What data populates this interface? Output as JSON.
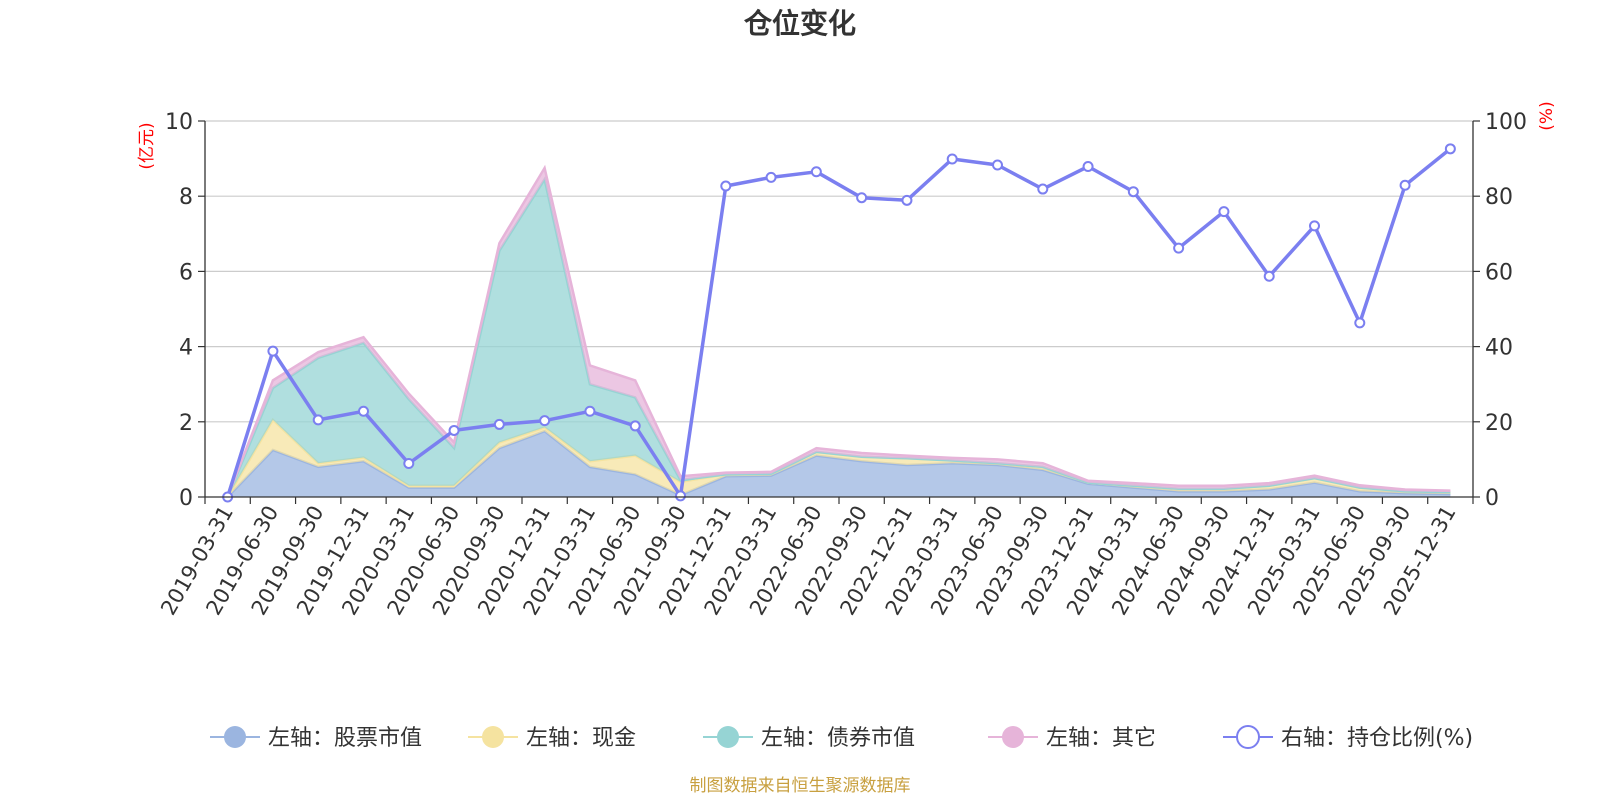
{
  "chart_data": {
    "type": "area",
    "title": "仓位变化",
    "left_axis": {
      "unit_label": "(亿元)",
      "range": [
        0,
        10
      ],
      "ticks": [
        "0",
        "2",
        "4",
        "6",
        "8",
        "10"
      ]
    },
    "right_axis": {
      "unit_label": "(%)",
      "range": [
        0,
        100
      ],
      "ticks": [
        "0",
        "20",
        "40",
        "60",
        "80",
        "100"
      ]
    },
    "categories": [
      "2019-03-31",
      "2019-06-30",
      "2019-09-30",
      "2019-12-31",
      "2020-03-31",
      "2020-06-30",
      "2020-09-30",
      "2020-12-31",
      "2021-03-31",
      "2021-06-30",
      "2021-09-30",
      "2021-12-31",
      "2022-03-31",
      "2022-06-30",
      "2022-09-30",
      "2022-12-31",
      "2023-03-31",
      "2023-06-30",
      "2023-09-30",
      "2023-12-31",
      "2024-03-31",
      "2024-06-30",
      "2024-09-30",
      "2024-12-31",
      "2025-03-31",
      "2025-06-30",
      "2025-09-30",
      "2025-12-31"
    ],
    "series": [
      {
        "name": "左轴：股票市值",
        "axis": "left",
        "stack": true,
        "color": "#9bb5e0",
        "values": [
          0,
          1.25,
          0.8,
          0.95,
          0.25,
          0.25,
          1.3,
          1.75,
          0.8,
          0.6,
          0.05,
          0.55,
          0.57,
          1.1,
          0.95,
          0.85,
          0.9,
          0.85,
          0.72,
          0.35,
          0.25,
          0.15,
          0.15,
          0.2,
          0.38,
          0.15,
          0.1,
          0.08
        ]
      },
      {
        "name": "左轴：现金",
        "axis": "left",
        "stack": true,
        "color": "#f5e3a0",
        "values": [
          0,
          0.8,
          0.1,
          0.1,
          0.05,
          0.05,
          0.15,
          0.1,
          0.15,
          0.5,
          0.35,
          0.05,
          0.05,
          0.1,
          0.12,
          0.18,
          0.07,
          0.05,
          0.08,
          0.03,
          0.05,
          0.07,
          0.07,
          0.1,
          0.12,
          0.1,
          0.05,
          0.05
        ]
      },
      {
        "name": "左轴：债券市值",
        "axis": "left",
        "stack": true,
        "color": "#96d4d4",
        "values": [
          0,
          0.85,
          2.8,
          3.05,
          2.3,
          1.0,
          5.1,
          6.6,
          2.05,
          1.55,
          0.05,
          0,
          0,
          0,
          0,
          0,
          0,
          0,
          0,
          0,
          0,
          0,
          0,
          0,
          0,
          0,
          0,
          0
        ]
      },
      {
        "name": "左轴：其它",
        "axis": "left",
        "stack": true,
        "color": "#e6b4d9",
        "values": [
          0,
          0.2,
          0.15,
          0.15,
          0.15,
          0.15,
          0.2,
          0.3,
          0.5,
          0.45,
          0.1,
          0.05,
          0.05,
          0.1,
          0.1,
          0.07,
          0.07,
          0.1,
          0.1,
          0.05,
          0.07,
          0.08,
          0.08,
          0.07,
          0.07,
          0.06,
          0.05,
          0.04
        ]
      },
      {
        "name": "右轴：持仓比例(%)",
        "axis": "right",
        "type": "line",
        "color": "#7b7ff0",
        "values": [
          0,
          38.8,
          20.5,
          22.8,
          8.9,
          17.7,
          19.3,
          20.3,
          22.8,
          18.9,
          0.3,
          82.7,
          85.0,
          86.5,
          79.6,
          78.9,
          89.9,
          88.3,
          81.9,
          87.9,
          81.2,
          66.2,
          75.9,
          58.7,
          72.1,
          46.3,
          82.9,
          92.6
        ]
      }
    ],
    "legend_position": "bottom",
    "grid": true
  },
  "footer": "制图数据来自恒生聚源数据库",
  "colors": {
    "footer": "#c8a040",
    "axis_unit": "#ff0000",
    "grid": "#cccccc"
  }
}
